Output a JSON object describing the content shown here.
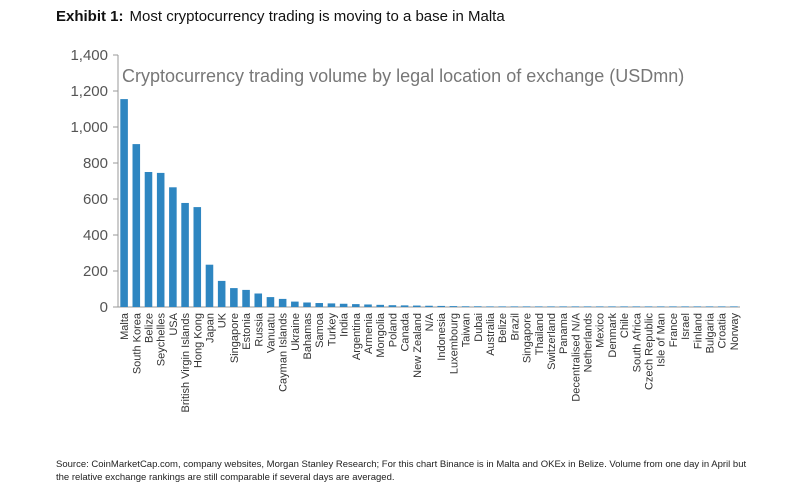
{
  "header": {
    "exhibit_label": "Exhibit 1:",
    "headline": "Most cryptocurrency trading is moving to a base in Malta"
  },
  "source_note": "Source: CoinMarketCap.com, company websites, Morgan Stanley Research; For this chart Binance is in Malta and OKEx in Belize. Volume from one day in April but the relative exchange rankings are still comparable if several days are averaged.",
  "colors": {
    "bar": "#2e86c1",
    "axis": "#999999",
    "text": "#333333"
  },
  "chart_data": {
    "type": "bar",
    "title": "Cryptocurrency trading volume by legal location of exchange (USDmn)",
    "xlabel": "",
    "ylabel": "",
    "ylim": [
      0,
      1400
    ],
    "yticks": [
      0,
      200,
      400,
      600,
      800,
      1000,
      1200,
      1400
    ],
    "ytick_labels": [
      "0",
      "200",
      "400",
      "600",
      "800",
      "1,000",
      "1,200",
      "1,400"
    ],
    "grid": false,
    "categories": [
      "Malta",
      "South Korea",
      "Belize",
      "Seychelles",
      "USA",
      "British Virgin Islands",
      "Hong Kong",
      "Japan",
      "UK",
      "Singapore",
      "Estonia",
      "Russia",
      "Vanuatu",
      "Cayman Islands",
      "Ukraine",
      "Bahamas",
      "Samoa",
      "Turkey",
      "India",
      "Argentina",
      "Armenia",
      "Mongolia",
      "Poland",
      "Canada",
      "New Zealand",
      "N/A",
      "Indonesia",
      "Luxembourg",
      "Taiwan",
      "Dubai",
      "Australia",
      "Belize",
      "Brazil",
      "Singapore",
      "Thailand",
      "Switzerland",
      "Panama",
      "Decentralised N/A",
      "Netherlands",
      "Mexico",
      "Denmark",
      "Chile",
      "South Africa",
      "Czech Republic",
      "Isle of Man",
      "France",
      "Israel",
      "Finland",
      "Bulgaria",
      "Croatia",
      "Norway"
    ],
    "values": [
      1155,
      905,
      750,
      745,
      665,
      578,
      555,
      235,
      145,
      105,
      95,
      75,
      55,
      45,
      30,
      25,
      22,
      20,
      18,
      16,
      14,
      12,
      10,
      9,
      8,
      7,
      6,
      5,
      4,
      4,
      3,
      3,
      3,
      2,
      2,
      2,
      2,
      1,
      1,
      1,
      1,
      1,
      1,
      1,
      1,
      1,
      1,
      1,
      1,
      1,
      1
    ]
  }
}
